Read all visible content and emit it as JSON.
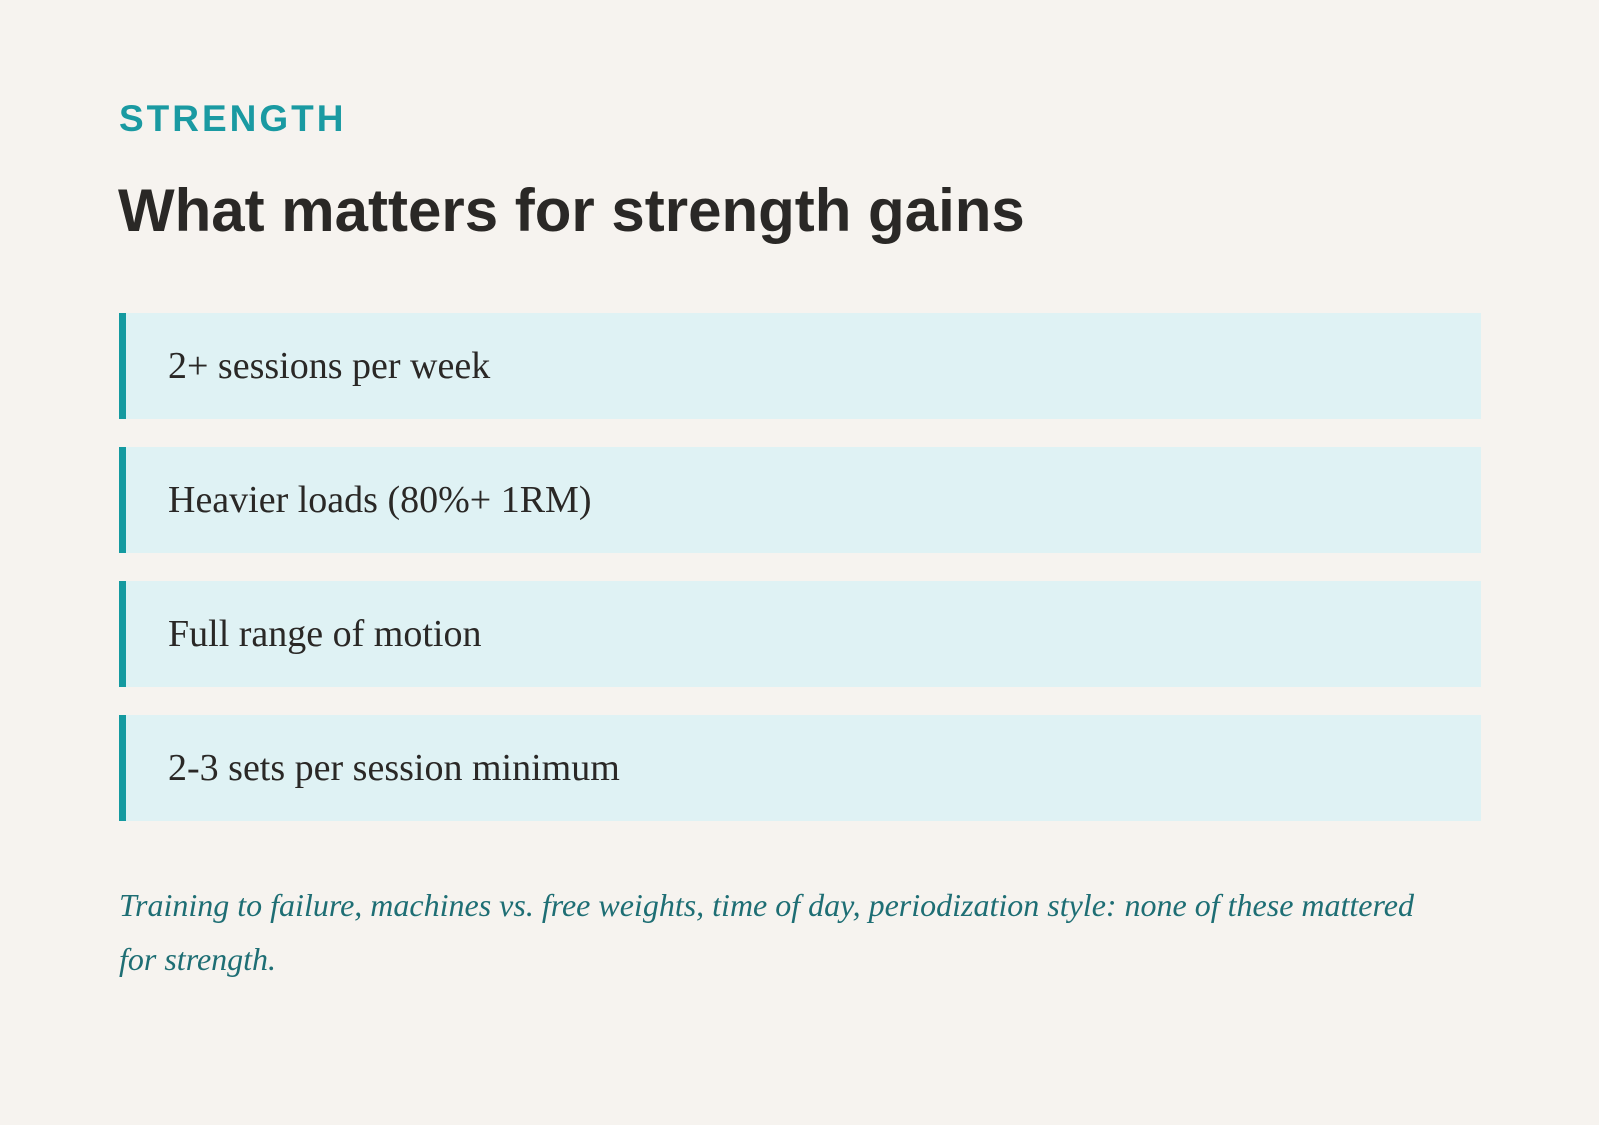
{
  "section_label": "STRENGTH",
  "title": "What matters for strength gains",
  "items": [
    "2+ sessions per week",
    "Heavier loads (80%+ 1RM)",
    "Full range of motion",
    "2-3 sets per session minimum"
  ],
  "note": "Training to failure, machines vs. free weights, time of day, periodization style: none of these mattered for strength."
}
